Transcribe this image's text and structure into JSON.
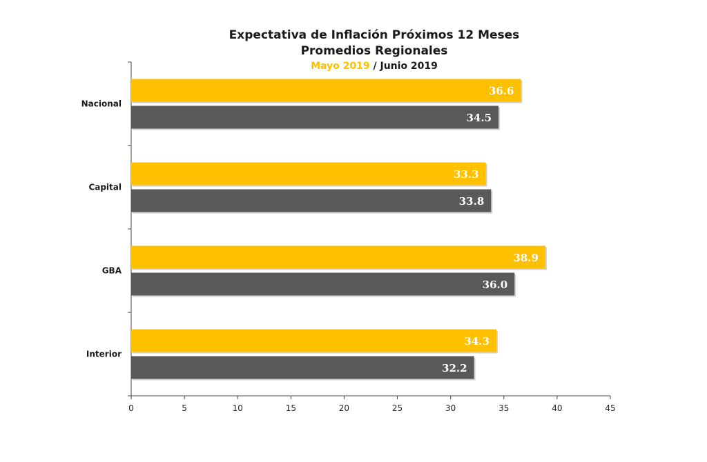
{
  "chart_data": {
    "type": "bar",
    "orientation": "horizontal",
    "title": "Expectativa de Inflación Próximos 12 Meses",
    "subtitle": "Promedios Regionales",
    "legend_line": {
      "series_a": "Mayo 2019",
      "separator": " / ",
      "series_b": "Junio 2019"
    },
    "categories": [
      "Nacional",
      "Capital",
      "GBA",
      "Interior"
    ],
    "series": [
      {
        "name": "Mayo 2019",
        "color": "#FFC000",
        "values": [
          36.6,
          33.3,
          38.9,
          34.3
        ],
        "labels": [
          "36.6",
          "33.3",
          "38.9",
          "34.3"
        ]
      },
      {
        "name": "Junio 2019",
        "color": "#595959",
        "values": [
          34.5,
          33.8,
          36.0,
          32.2
        ],
        "labels": [
          "34.5",
          "33.8",
          "36.0",
          "32.2"
        ]
      }
    ],
    "xlim": [
      0,
      45
    ],
    "xticks": [
      0,
      5,
      10,
      15,
      20,
      25,
      30,
      35,
      40,
      45
    ],
    "xtick_labels": [
      "0",
      "5",
      "10",
      "15",
      "20",
      "25",
      "30",
      "35",
      "40",
      "45"
    ],
    "grid": false,
    "legend": "subtitle"
  }
}
